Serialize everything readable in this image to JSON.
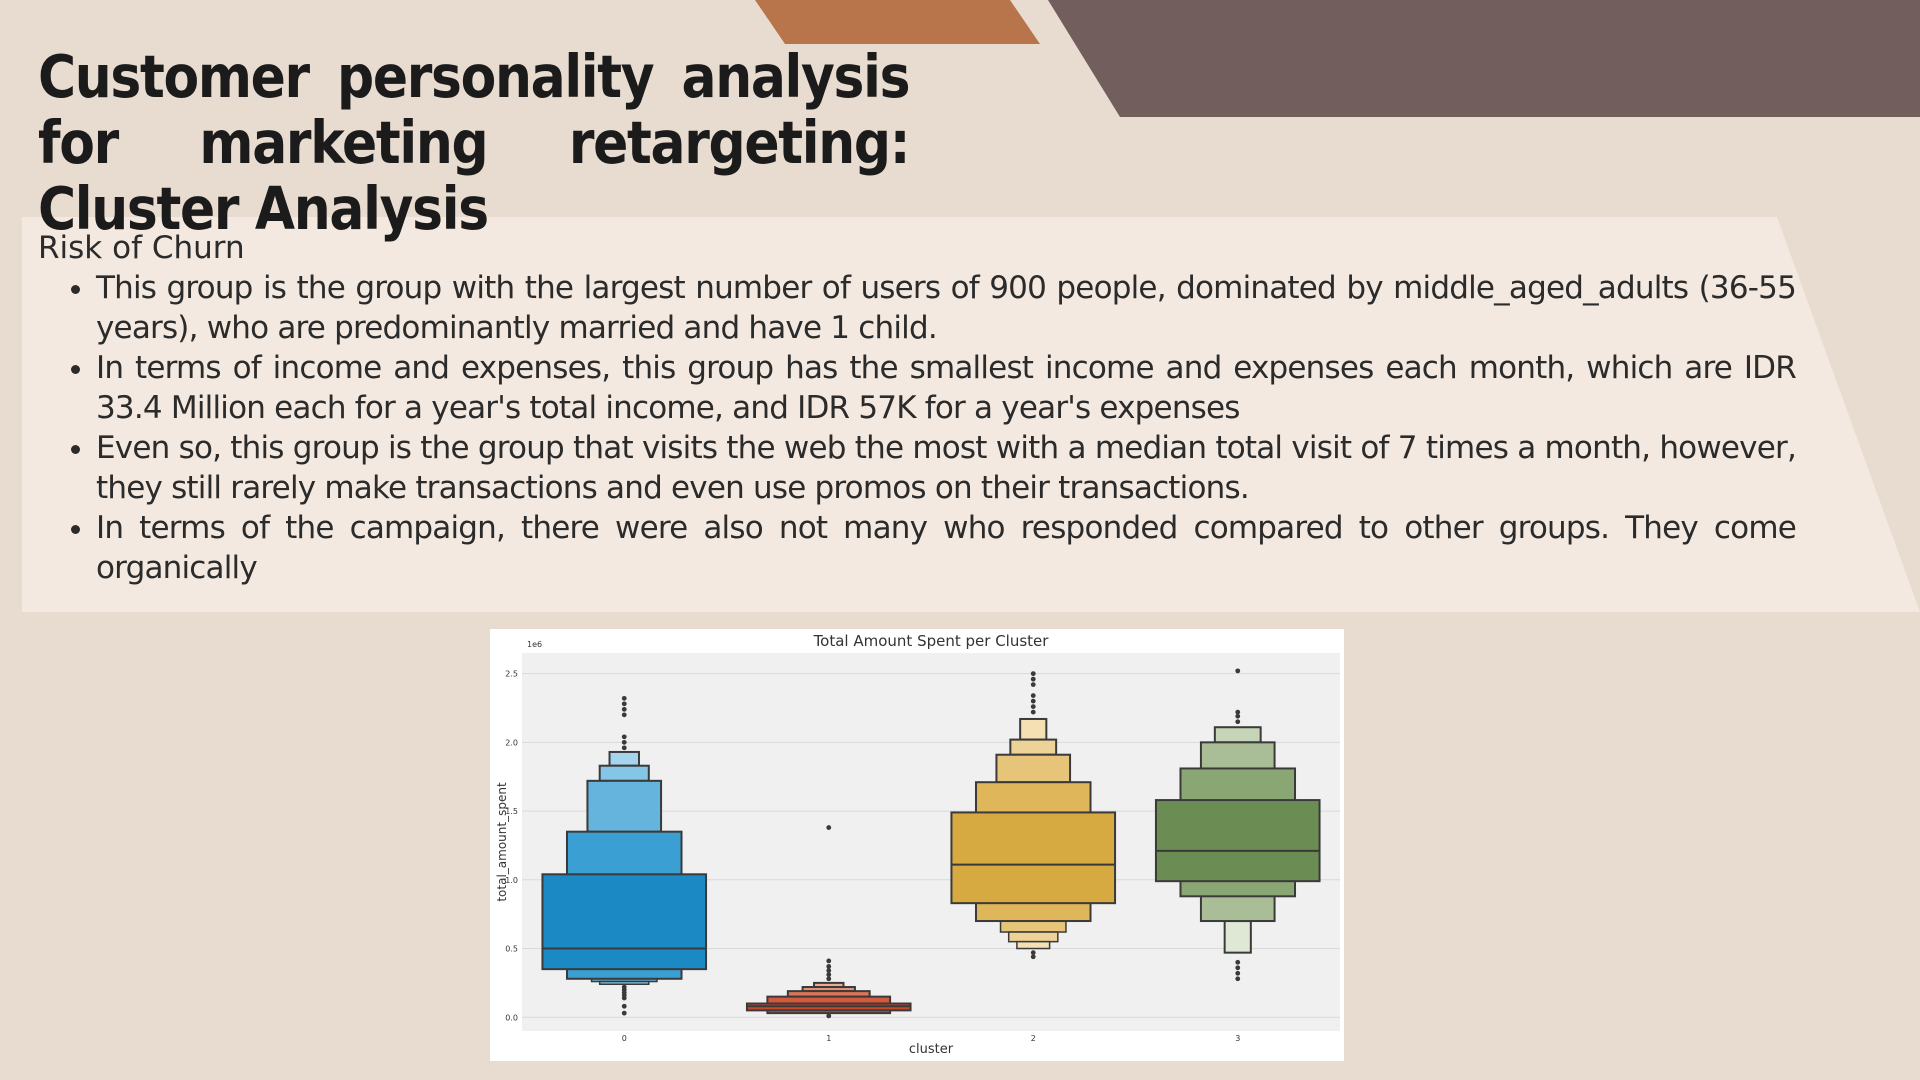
{
  "slide": {
    "title": "Customer personality analysis for marketing retargeting: Cluster Analysis",
    "section_title": "Risk of Churn",
    "bullets": [
      "This group is the group with the largest number of users of 900 people, dominated by middle_aged_adults (36-55 years), who are predominantly married and have 1 child.",
      "In terms of income and expenses, this group has the smallest income and expenses each month, which are IDR 33.4 Million each for a year's total income, and IDR 57K for a year's expenses",
      "Even so, this group is the group that visits the web the most with a median total visit of 7 times a month, however, they still rarely make transactions and even use promos on their transactions.",
      "In terms of the campaign, there were also not many who responded compared to other groups. They come organically"
    ],
    "colors": {
      "background": "#e8dbcf",
      "panel": "#f3e9e0",
      "accent_orange": "#b8744a",
      "accent_brown": "#725e5c"
    }
  },
  "chart_data": {
    "type": "boxen",
    "title": "Total Amount Spent per Cluster",
    "xlabel": "cluster",
    "ylabel": "total_amount_spent",
    "scale_label": "1e6",
    "ylim": [
      -0.1,
      2.65
    ],
    "yticks": [
      0.0,
      0.5,
      1.0,
      1.5,
      2.0,
      2.5
    ],
    "ytick_labels": [
      "0.0",
      "0.5",
      "1.0",
      "1.5",
      "2.0",
      "2.5"
    ],
    "categories": [
      "0",
      "1",
      "2",
      "3"
    ],
    "grid": true,
    "clusters": [
      {
        "label": "0",
        "median": 0.5,
        "colors": [
          "#1b89c3",
          "#3a9fd2",
          "#64b4de",
          "#85c5e6",
          "#a5d5ee"
        ],
        "levels": [
          [
            0.35,
            1.04
          ],
          [
            0.28,
            1.35
          ],
          [
            1.35,
            1.72
          ],
          [
            1.72,
            1.83
          ],
          [
            1.83,
            1.93
          ]
        ],
        "lower_levels": [
          [
            0.26,
            0.28
          ],
          [
            0.24,
            0.26
          ]
        ],
        "widths": [
          1.0,
          0.7,
          0.45,
          0.3,
          0.18
        ],
        "outliers": [
          0.22,
          0.2,
          0.18,
          0.16,
          0.14,
          0.08,
          0.03,
          1.96,
          2.0,
          2.04,
          2.2,
          2.24,
          2.28,
          2.32
        ]
      },
      {
        "label": "1",
        "median": 0.08,
        "colors": [
          "#c9462c",
          "#d45a3e",
          "#de7558",
          "#e69276",
          "#eeae96"
        ],
        "levels": [
          [
            0.05,
            0.1
          ],
          [
            0.03,
            0.15
          ],
          [
            0.15,
            0.19
          ],
          [
            0.19,
            0.22
          ],
          [
            0.22,
            0.25
          ]
        ],
        "lower_levels": [],
        "widths": [
          1.0,
          0.75,
          0.5,
          0.32,
          0.18
        ],
        "outliers": [
          0.28,
          0.31,
          0.34,
          0.37,
          0.41,
          0.01,
          1.38
        ]
      },
      {
        "label": "2",
        "median": 1.11,
        "colors": [
          "#d6a941",
          "#dfb65a",
          "#e6c47a",
          "#eed398",
          "#f4e0b3"
        ],
        "levels": [
          [
            0.83,
            1.49
          ],
          [
            0.7,
            1.71
          ],
          [
            1.71,
            1.91
          ],
          [
            1.91,
            2.02
          ],
          [
            2.02,
            2.17
          ]
        ],
        "lower_levels": [
          [
            0.62,
            0.7
          ],
          [
            0.55,
            0.62
          ],
          [
            0.5,
            0.55
          ]
        ],
        "widths": [
          1.0,
          0.7,
          0.45,
          0.28,
          0.16
        ],
        "outliers": [
          0.47,
          0.44,
          2.22,
          2.26,
          2.3,
          2.34,
          2.42,
          2.46,
          2.5
        ]
      },
      {
        "label": "3",
        "median": 1.21,
        "colors": [
          "#6b8c52",
          "#8aa673",
          "#a9be96",
          "#c6d4b8",
          "#dfe7d5"
        ],
        "levels": [
          [
            0.99,
            1.58
          ],
          [
            0.88,
            1.81
          ],
          [
            0.7,
            2.0
          ],
          [
            2.0,
            2.11
          ],
          [
            0.47,
            0.7
          ]
        ],
        "lower_levels": [],
        "widths": [
          1.0,
          0.7,
          0.45,
          0.28,
          0.16
        ],
        "outliers": [
          2.15,
          2.19,
          2.22,
          0.4,
          0.36,
          0.32,
          0.28,
          2.52
        ]
      }
    ]
  }
}
